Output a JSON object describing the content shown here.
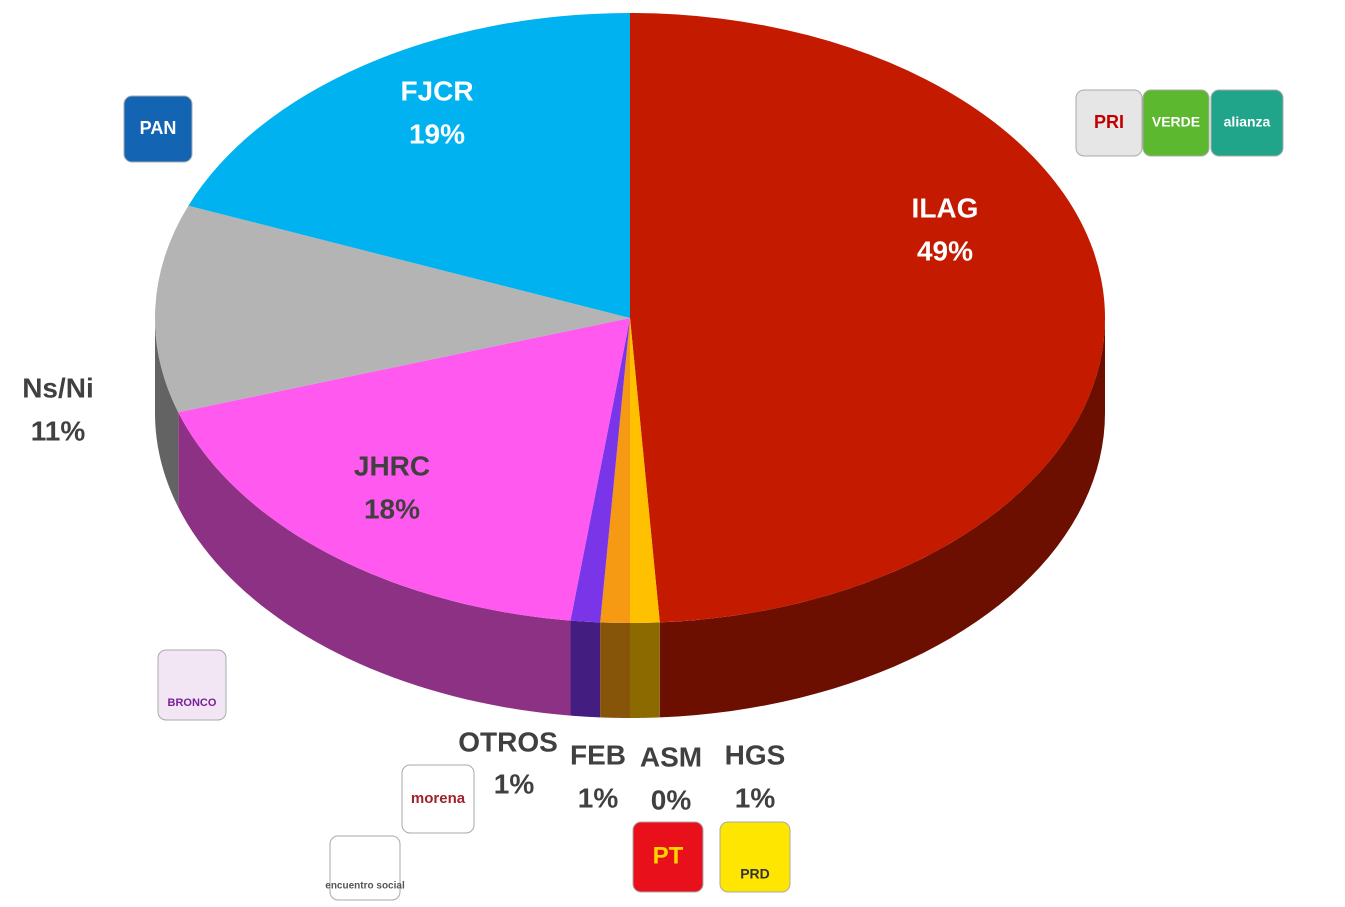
{
  "chart_data": {
    "type": "pie",
    "categories": [
      "ILAG",
      "HGS",
      "ASM",
      "FEB",
      "OTROS",
      "JHRC",
      "Ns/Ni",
      "FJCR"
    ],
    "values": [
      49,
      1,
      0,
      1,
      1,
      18,
      11,
      19
    ],
    "value_labels": [
      "49%",
      "1%",
      "0%",
      "1%",
      "1%",
      "18%",
      "11%",
      "19%"
    ],
    "colors": [
      "#c41a00",
      "#ffc000",
      "#ff3d00",
      "#f59a12",
      "#7a35e8",
      "#ff59ef",
      "#b4b4b4",
      "#00b2ef"
    ],
    "annotations": [
      "PAN",
      "PRI",
      "VERDE",
      "alianza",
      "BRONCO",
      "morena",
      "encuentro social",
      "PT",
      "PRD"
    ]
  }
}
